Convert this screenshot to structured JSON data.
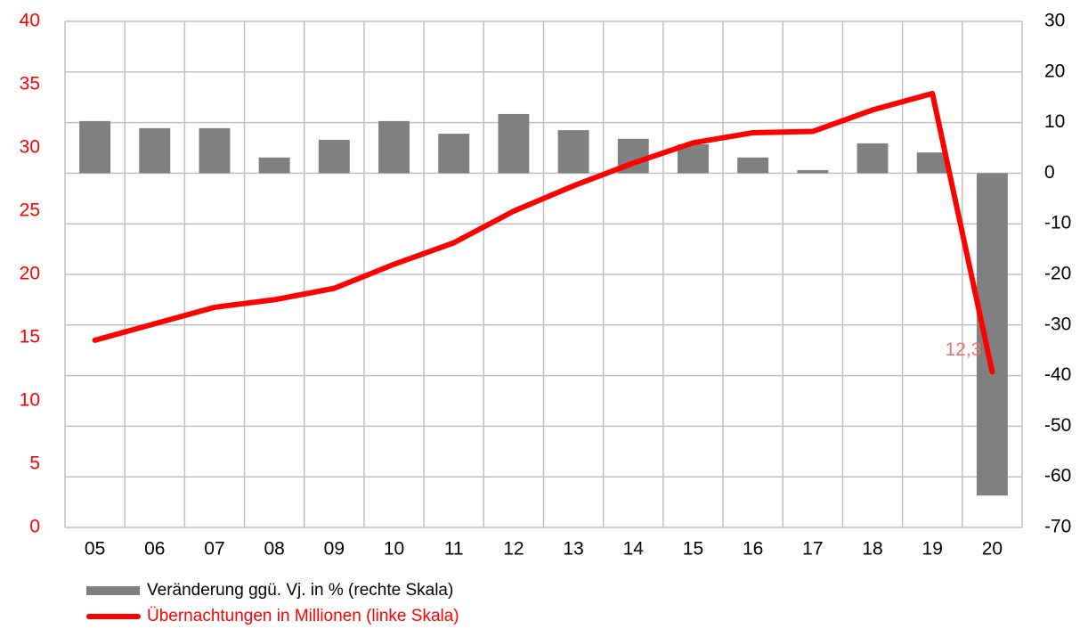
{
  "chart_data": {
    "type": "bar",
    "categories": [
      "05",
      "06",
      "07",
      "08",
      "09",
      "10",
      "11",
      "12",
      "13",
      "14",
      "15",
      "16",
      "17",
      "18",
      "19",
      "20"
    ],
    "series": [
      {
        "name": "Veränderung ggü. Vj. in % (rechte Skala)",
        "type": "bar",
        "color": "#808080",
        "axis": "y2",
        "values": [
          10.3,
          8.9,
          8.9,
          3.1,
          6.6,
          10.3,
          7.8,
          11.7,
          8.5,
          6.8,
          5.7,
          3.1,
          0.6,
          5.9,
          4.1,
          -63.7
        ]
      },
      {
        "name": "Übernachtungen in Millionen (linke Skala)",
        "type": "line",
        "color": "#ff0000",
        "axis": "y",
        "values": [
          14.8,
          16.1,
          17.4,
          18.0,
          18.9,
          20.8,
          22.5,
          25.0,
          27.0,
          28.8,
          30.4,
          31.2,
          31.3,
          33.0,
          34.3,
          12.3
        ],
        "value_labels": [
          null,
          null,
          null,
          null,
          null,
          null,
          null,
          null,
          null,
          null,
          null,
          null,
          null,
          null,
          null,
          "12,3"
        ]
      }
    ],
    "ylim": [
      0,
      40
    ],
    "yticks": [
      0,
      5,
      10,
      15,
      20,
      25,
      30,
      35,
      40
    ],
    "y2lim": [
      -70,
      30
    ],
    "y2ticks": [
      -70,
      -60,
      -50,
      -40,
      -30,
      -20,
      -10,
      0,
      10,
      20,
      30
    ],
    "grid": true
  }
}
